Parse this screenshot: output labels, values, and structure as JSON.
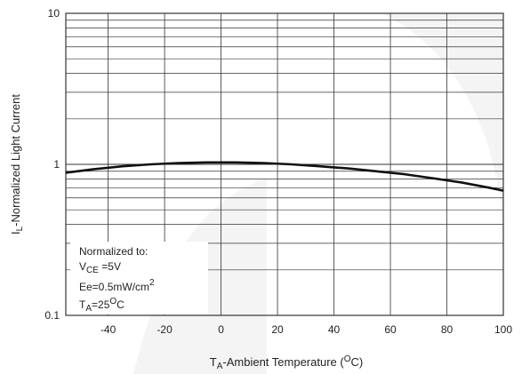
{
  "chart_data": {
    "type": "line",
    "title": "",
    "xlabel": {
      "main": "T",
      "sub": "A",
      "rest": "-Ambient Temperature (",
      "sup": "O",
      "end": "C)"
    },
    "ylabel": {
      "main": "I",
      "sub": "L",
      "rest": "-Normalized Light Current"
    },
    "xlim": [
      -55,
      100
    ],
    "ylim": [
      0.1,
      10
    ],
    "y_scale": "log",
    "grid": true,
    "x_ticks": [
      -40,
      -20,
      0,
      20,
      40,
      60,
      80,
      100
    ],
    "x_tick_labels": [
      "-40",
      "-20",
      "0",
      "20",
      "40",
      "60",
      "80",
      "100"
    ],
    "y_ticks": [
      0.1,
      1,
      10
    ],
    "y_tick_labels": [
      "0.1",
      "1",
      "10"
    ],
    "series": [
      {
        "x": [
          -55,
          -45,
          -35,
          -25,
          -15,
          -5,
          5,
          15,
          25,
          35,
          45,
          55,
          65,
          75,
          85,
          95,
          100
        ],
        "y": [
          0.88,
          0.93,
          0.97,
          1.0,
          1.02,
          1.03,
          1.03,
          1.02,
          1.0,
          0.97,
          0.94,
          0.9,
          0.86,
          0.81,
          0.76,
          0.7,
          0.67
        ],
        "color": "#111111"
      }
    ],
    "annotation": {
      "line1": "Normalized to:",
      "line2_main": "V",
      "line2_sub": "CE",
      "line2_rest": " =5V",
      "line3_main": "Ee=0.5mW/cm",
      "line3_sup": "2",
      "line4_main": "T",
      "line4_sub": "A",
      "line4_rest": "=25",
      "line4_sup": "O",
      "line4_end": "C"
    }
  },
  "colors": {
    "background_shape": "#ececec",
    "grid": "#333333",
    "curve": "#111111"
  }
}
